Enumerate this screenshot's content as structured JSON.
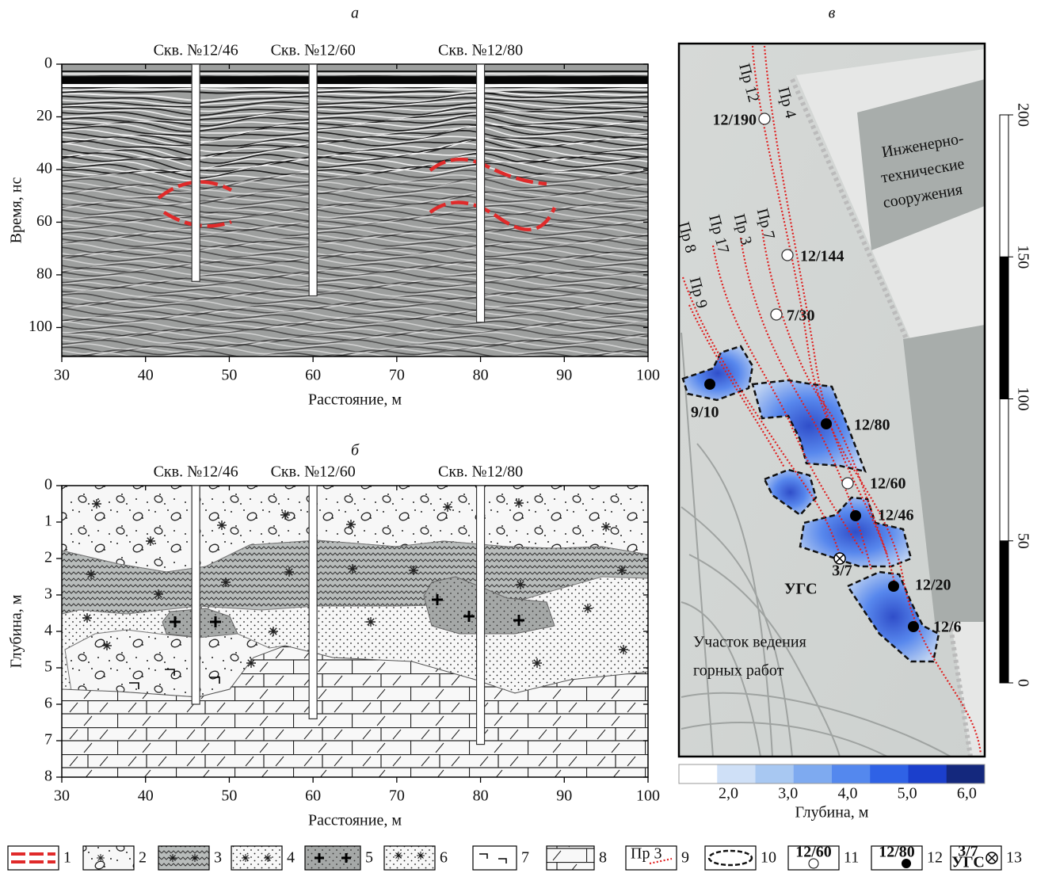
{
  "chart_data": [
    {
      "type": "radargram",
      "title": "а",
      "x_label": "Расстояние, м",
      "y_label": "Время, нс",
      "xlim": [
        30,
        100
      ],
      "ylim": [
        0,
        111
      ],
      "xticks": [
        30,
        40,
        50,
        60,
        70,
        80,
        90,
        100
      ],
      "yticks": [
        0,
        20,
        40,
        60,
        80,
        100
      ],
      "boreholes": {
        "labels": [
          "Скв. №12/46",
          "Скв. №12/60",
          "Скв. №12/80"
        ],
        "x": [
          46,
          60,
          80
        ],
        "depth": [
          82.5,
          88,
          98
        ]
      }
    },
    {
      "type": "section",
      "title": "б",
      "x_label": "Расстояние, м",
      "y_label": "Глубина, м",
      "xlim": [
        30,
        100
      ],
      "ylim": [
        0,
        8
      ],
      "xticks": [
        30,
        40,
        50,
        60,
        70,
        80,
        90,
        100
      ],
      "yticks": [
        0,
        1,
        2,
        3,
        4,
        5,
        6,
        7,
        8
      ],
      "boreholes": {
        "labels": [
          "Скв. №12/46",
          "Скв. №12/60",
          "Скв. №12/80"
        ],
        "x": [
          46,
          60,
          80
        ],
        "depth": [
          6.0,
          6.4,
          7.1
        ]
      }
    }
  ],
  "map": {
    "title": "в",
    "wells": [
      {
        "label": "12/190",
        "kind": "open"
      },
      {
        "label": "12/144",
        "kind": "open"
      },
      {
        "label": "7/30",
        "kind": "open"
      },
      {
        "label": "9/10",
        "kind": "filled"
      },
      {
        "label": "12/80",
        "kind": "filled"
      },
      {
        "label": "12/60",
        "kind": "open"
      },
      {
        "label": "12/46",
        "kind": "filled"
      },
      {
        "label": "12/20",
        "kind": "filled"
      },
      {
        "label": "12/6",
        "kind": "filled"
      },
      {
        "label": "3/7",
        "kind": "cross"
      }
    ],
    "ugs_label": "УГС",
    "profiles": [
      "Пр 12",
      "Пр 4",
      "Пр 8",
      "Пр 17",
      "Пр 3",
      "Пр 7",
      "Пр 9"
    ],
    "structures_label": [
      "Инженерно-",
      "технические",
      "сооружения"
    ],
    "mining_label": [
      "Участок ведения",
      "горных работ"
    ],
    "scale_bar": {
      "lim": [
        0,
        200
      ],
      "ticks": [
        0,
        50,
        100,
        150,
        200
      ]
    },
    "colorbar": {
      "label": "Глубина, м",
      "lim": [
        1.17,
        6.3
      ],
      "ticks": [
        {
          "value": 2,
          "label": "2,0"
        },
        {
          "value": 3,
          "label": "3,0"
        },
        {
          "value": 4,
          "label": "4,0"
        },
        {
          "value": 5,
          "label": "5,0"
        },
        {
          "value": 6,
          "label": "6,0"
        }
      ],
      "colors": [
        "#ffffff",
        "#cfe0f7",
        "#a8c8f2",
        "#7eaaf0",
        "#5488ee",
        "#2f62e6",
        "#1b3fcc",
        "#14287d"
      ]
    }
  },
  "legend": {
    "items": [
      {
        "number": "1"
      },
      {
        "number": "2"
      },
      {
        "number": "3"
      },
      {
        "number": "4"
      },
      {
        "number": "5"
      },
      {
        "number": "6"
      },
      {
        "number": "7"
      },
      {
        "number": "8"
      },
      {
        "number": "9",
        "text": "Пр 3"
      },
      {
        "number": "10"
      },
      {
        "number": "11",
        "text": "12/60"
      },
      {
        "number": "12",
        "text": "12/80"
      },
      {
        "number": "13",
        "text": [
          "3/7",
          "УГС"
        ]
      }
    ]
  }
}
